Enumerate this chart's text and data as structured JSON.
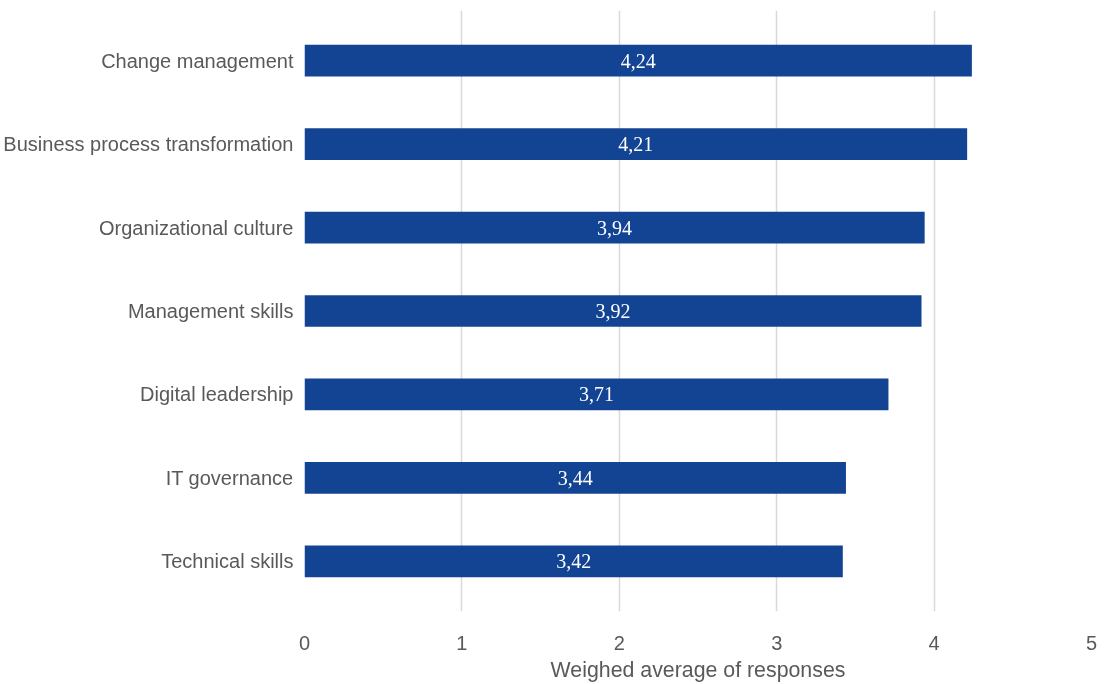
{
  "chart_data": {
    "type": "bar",
    "orientation": "horizontal",
    "xlabel": "Weighed average of responses",
    "categories": [
      "Change management",
      "Business process transformation",
      "Organizational culture",
      "Management skills",
      "Digital leadership",
      "IT governance",
      "Technical skills"
    ],
    "values": [
      4.24,
      4.21,
      3.94,
      3.92,
      3.71,
      3.44,
      3.42
    ],
    "value_labels": [
      "4,24",
      "4,21",
      "3,94",
      "3,92",
      "3,71",
      "3,44",
      "3,42"
    ],
    "color": "#134494",
    "xlim": [
      0,
      5
    ],
    "xticks": [
      0,
      1,
      2,
      3,
      4,
      5
    ],
    "grid": "x"
  }
}
